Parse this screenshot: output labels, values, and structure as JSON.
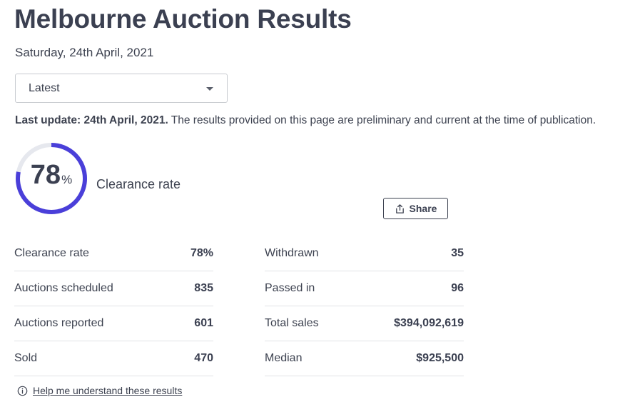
{
  "header": {
    "title": "Melbourne Auction Results",
    "date": "Saturday, 24th April, 2021"
  },
  "filter": {
    "selected": "Latest"
  },
  "update": {
    "bold": "Last update: 24th April, 2021.",
    "text": " The results provided on this page are preliminary and current at the time of publication."
  },
  "clearance": {
    "value": "78",
    "unit": "%",
    "fraction": 0.78,
    "caption": "Clearance rate",
    "ring_color": "#4a3fd9",
    "track_color": "#e6e8ee"
  },
  "share": {
    "label": "Share",
    "icon": "share-icon"
  },
  "stats": {
    "left": [
      {
        "label": "Clearance rate",
        "value": "78%"
      },
      {
        "label": "Auctions scheduled",
        "value": "835"
      },
      {
        "label": "Auctions reported",
        "value": "601"
      },
      {
        "label": "Sold",
        "value": "470"
      }
    ],
    "right": [
      {
        "label": "Withdrawn",
        "value": "35"
      },
      {
        "label": "Passed in",
        "value": "96"
      },
      {
        "label": "Total sales",
        "value": "$394,092,619"
      },
      {
        "label": "Median",
        "value": "$925,500"
      }
    ]
  },
  "help": {
    "label": "Help me understand these results",
    "icon": "info-icon"
  }
}
